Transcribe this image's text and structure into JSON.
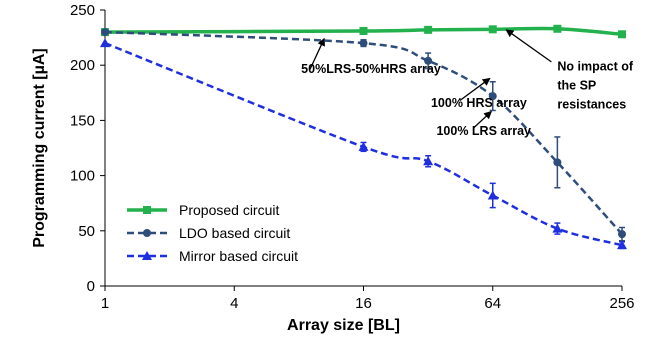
{
  "chart_data": {
    "type": "line",
    "xlabel": "Array size [BL]",
    "ylabel": "Programming current [µA]",
    "x_scale": "log2",
    "xlim": [
      1,
      256
    ],
    "ylim": [
      0,
      250
    ],
    "x_ticks": [
      1,
      4,
      16,
      64,
      256
    ],
    "y_ticks": [
      0,
      50,
      100,
      150,
      200,
      250
    ],
    "grid": false,
    "legend_position": "bottom-left",
    "series": [
      {
        "name": "Proposed circuit",
        "color": "#22b14c",
        "line_style": "solid",
        "marker": "square",
        "x": [
          1,
          16,
          32,
          64,
          128,
          256
        ],
        "y": [
          230,
          231,
          232,
          232.5,
          233,
          228
        ],
        "err": [
          0,
          0,
          0,
          0,
          0,
          0
        ]
      },
      {
        "name": "LDO based circuit",
        "color": "#2e4d7b",
        "line_style": "dashed",
        "marker": "circle",
        "x": [
          1,
          16,
          32,
          64,
          128,
          256
        ],
        "y": [
          230,
          220,
          204,
          172,
          112,
          47
        ],
        "err": [
          0,
          3,
          7,
          13,
          23,
          6
        ]
      },
      {
        "name": "Mirror based circuit",
        "color": "#1f2fe0",
        "line_style": "dashed",
        "marker": "triangle",
        "x": [
          1,
          16,
          32,
          64,
          128,
          256
        ],
        "y": [
          220,
          126,
          113,
          82,
          52,
          37
        ],
        "err": [
          0,
          4,
          5,
          11,
          5,
          3
        ]
      }
    ],
    "annotations": [
      {
        "text": "50%LRS-50%HRS array",
        "x": 8.2,
        "y": 193
      },
      {
        "text": "100% HRS array",
        "x": 33,
        "y": 162
      },
      {
        "text": "100% LRS array",
        "x": 35,
        "y": 137
      },
      {
        "text": "No impact of",
        "x": 128,
        "y": 195
      },
      {
        "text": "the SP",
        "x": 128,
        "y": 178
      },
      {
        "text": "resistances",
        "x": 128,
        "y": 161
      }
    ]
  }
}
